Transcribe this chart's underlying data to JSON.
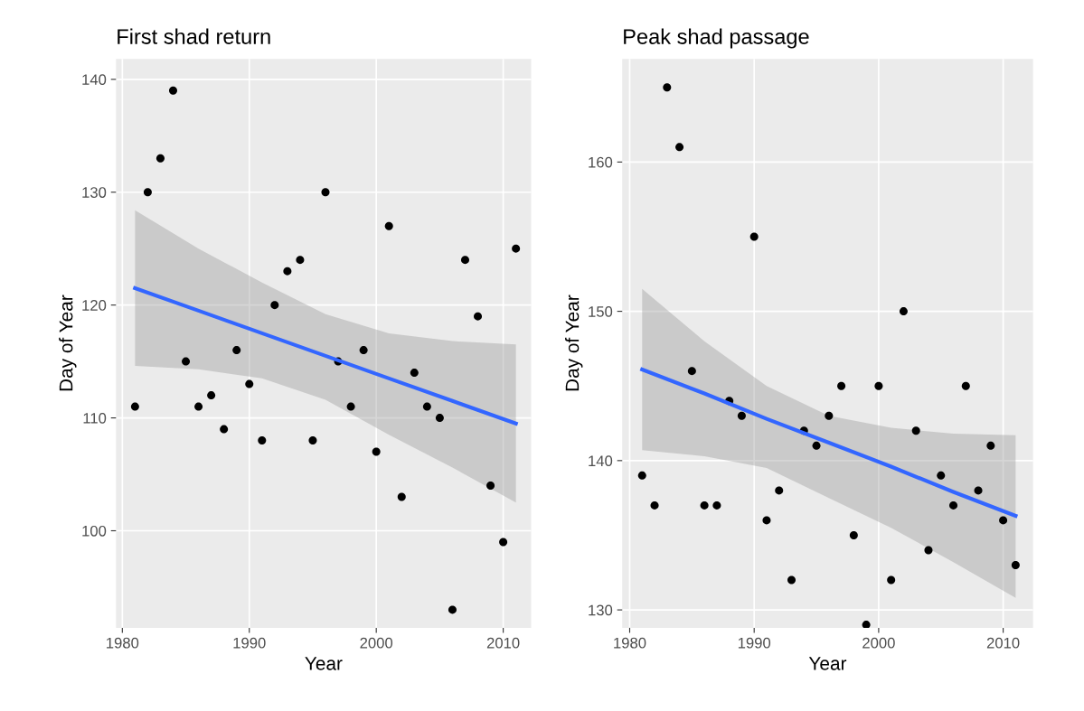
{
  "chart_data": [
    {
      "type": "scatter",
      "title": "First shad return",
      "xlabel": "Year",
      "ylabel": "Day of Year",
      "xlim": [
        1979.5,
        2012.2
      ],
      "ylim": [
        91.4,
        141.8
      ],
      "xticks": [
        1980,
        1990,
        2000,
        2010
      ],
      "yticks": [
        100,
        110,
        120,
        130,
        140
      ],
      "grid": true,
      "x": [
        1981,
        1982,
        1983,
        1984,
        1985,
        1986,
        1987,
        1988,
        1989,
        1990,
        1991,
        1992,
        1993,
        1994,
        1995,
        1996,
        1997,
        1998,
        1999,
        2000,
        2001,
        2002,
        2003,
        2004,
        2005,
        2006,
        2007,
        2008,
        2009,
        2010,
        2011
      ],
      "series": [
        {
          "marker": "circle",
          "color": "#000000",
          "values": [
            111,
            130,
            133,
            139,
            115,
            111,
            112,
            109,
            116,
            113,
            108,
            120,
            123,
            124,
            108,
            130,
            115,
            111,
            116,
            107,
            127,
            103,
            114,
            111,
            110,
            93,
            124,
            119,
            104,
            99,
            125
          ]
        },
        {
          "type": "line",
          "color": "#3366ff",
          "x": [
            1981,
            1986,
            1991,
            1996,
            2001,
            2006,
            2011
          ],
          "values": [
            121.5,
            119.5,
            117.5,
            115.5,
            113.5,
            111.5,
            109.5
          ],
          "lower": [
            114.6,
            114.3,
            113.5,
            111.6,
            108.5,
            105.6,
            102.5
          ],
          "upper": [
            128.4,
            125.0,
            122.0,
            119.2,
            117.5,
            116.8,
            116.5
          ]
        }
      ]
    },
    {
      "type": "scatter",
      "title": "Peak shad passage",
      "xlabel": "Year",
      "ylabel": "Day of Year",
      "xlim": [
        1979.4,
        2012.4
      ],
      "ylim": [
        128.8,
        166.9
      ],
      "xticks": [
        1980,
        1990,
        2000,
        2010
      ],
      "yticks": [
        130,
        140,
        150,
        160
      ],
      "grid": true,
      "x": [
        1981,
        1982,
        1983,
        1984,
        1985,
        1986,
        1987,
        1988,
        1989,
        1990,
        1991,
        1992,
        1993,
        1994,
        1995,
        1996,
        1997,
        1998,
        1999,
        2000,
        2001,
        2002,
        2003,
        2004,
        2005,
        2006,
        2007,
        2008,
        2009,
        2010,
        2011
      ],
      "series": [
        {
          "marker": "circle",
          "color": "#000000",
          "values": [
            139,
            137,
            165,
            161,
            146,
            137,
            137,
            144,
            143,
            155,
            136,
            138,
            132,
            142,
            141,
            143,
            145,
            135,
            129,
            145,
            132,
            150,
            142,
            134,
            139,
            137,
            145,
            138,
            141,
            136,
            133
          ]
        },
        {
          "type": "line",
          "color": "#3366ff",
          "x": [
            1981,
            1986,
            1991,
            1996,
            2001,
            2006,
            2011
          ],
          "values": [
            146.1,
            144.5,
            142.8,
            141.2,
            139.6,
            137.9,
            136.3
          ],
          "lower": [
            140.7,
            140.3,
            139.5,
            137.5,
            135.5,
            133.2,
            130.8
          ],
          "upper": [
            151.5,
            148.0,
            145.0,
            143.0,
            142.2,
            141.8,
            141.7
          ]
        }
      ]
    }
  ]
}
